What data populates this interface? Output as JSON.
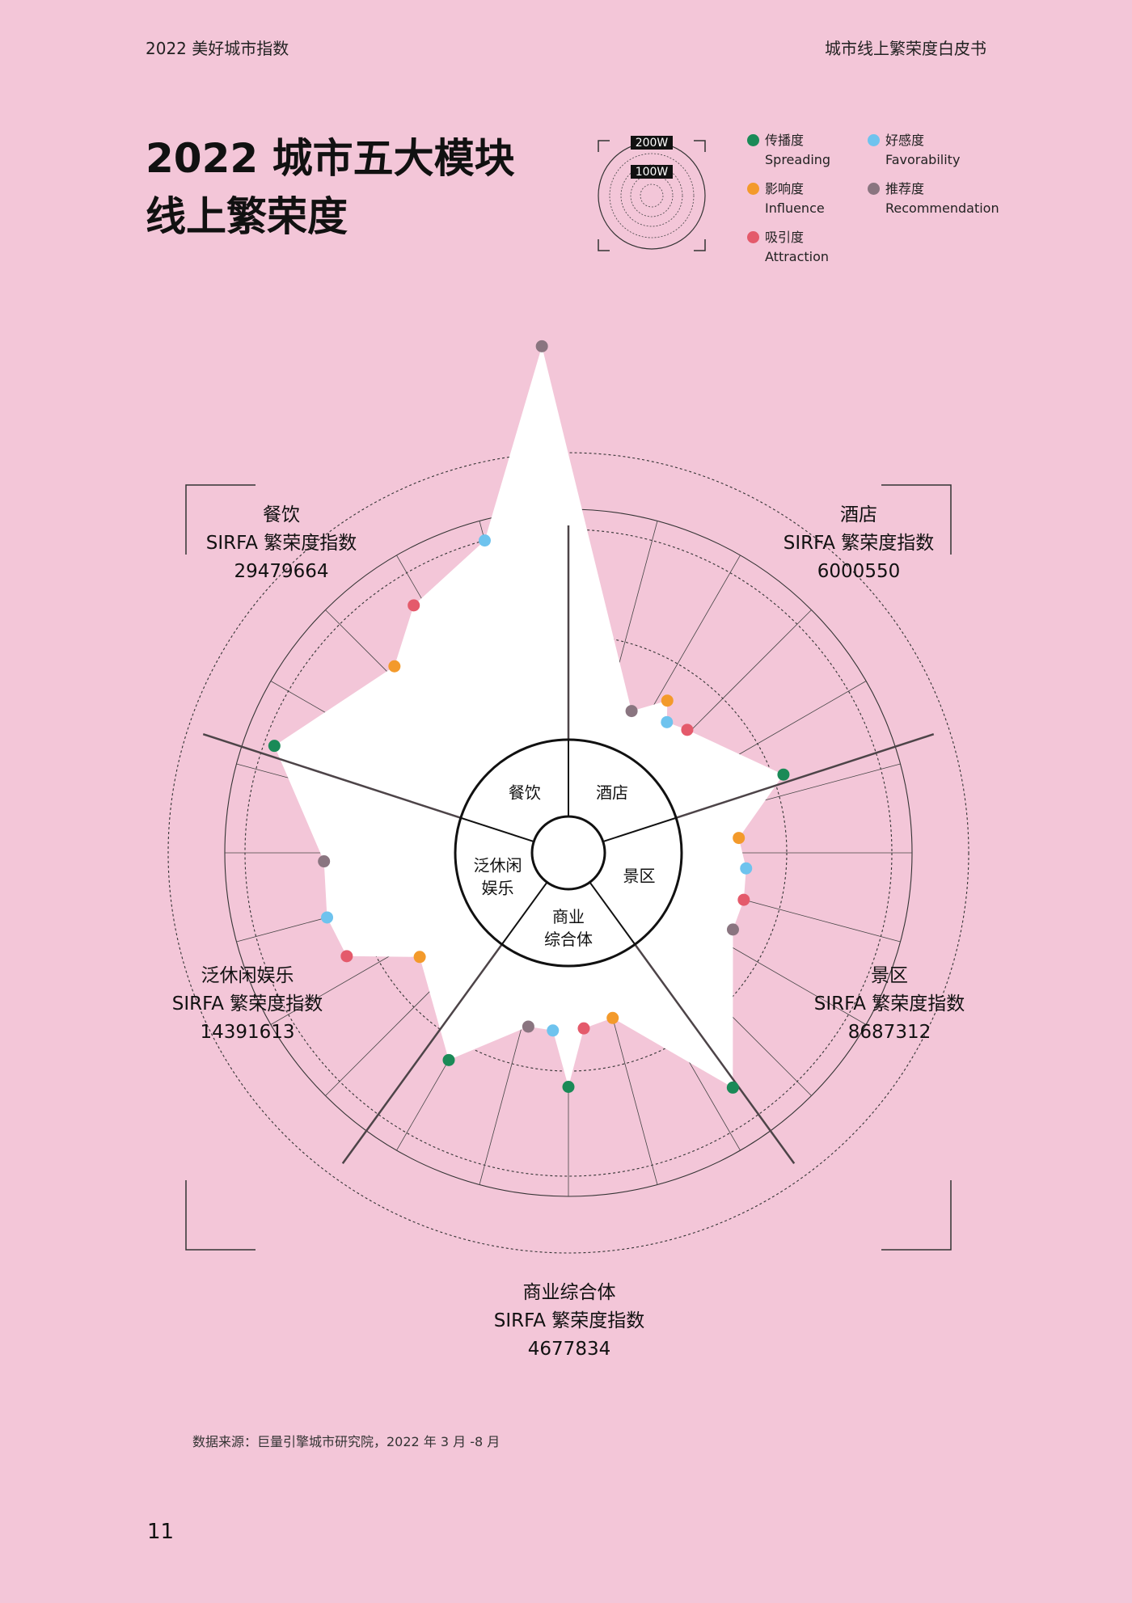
{
  "header": {
    "left": "2022 美好城市指数",
    "right": "城市线上繁荣度白皮书"
  },
  "title": {
    "line1": "2022 城市五大模块",
    "line2": "线上繁荣度"
  },
  "scale_legend": {
    "outer": "200W",
    "inner": "100W"
  },
  "metrics": [
    {
      "zh": "传播度",
      "en": "Spreading",
      "color": "#1a8a57"
    },
    {
      "zh": "影响度",
      "en": "Influence",
      "color": "#f39a2b"
    },
    {
      "zh": "吸引度",
      "en": "Attraction",
      "color": "#e45a6b"
    },
    {
      "zh": "好感度",
      "en": "Favorability",
      "color": "#6ec3ee"
    },
    {
      "zh": "推荐度",
      "en": "Recommendation",
      "color": "#8a7580"
    }
  ],
  "index_label": "SIRFA 繁荣度指数",
  "categories": [
    {
      "name": "餐饮",
      "index": "29479664"
    },
    {
      "name": "酒店",
      "index": "6000550"
    },
    {
      "name": "景区",
      "index": "8687312"
    },
    {
      "name": "商业综合体",
      "index": "4677834"
    },
    {
      "name": "泛休闲娱乐",
      "index": "14391613"
    }
  ],
  "hub_labels": {
    "food": "餐饮",
    "hotel": "酒店",
    "scenic": "景区",
    "mall_1": "商业",
    "mall_2": "综合体",
    "leisure_1": "泛休闲",
    "leisure_2": "娱乐"
  },
  "chart_data": {
    "type": "radar",
    "unit": "W",
    "scale_rings": [
      100,
      200
    ],
    "axes_order": [
      "传播度",
      "影响度",
      "吸引度",
      "好感度",
      "推荐度"
    ],
    "series": [
      {
        "name": "酒店",
        "angles_deg": [
          70,
          33,
          44,
          37,
          24
        ],
        "values": [
          110,
          65,
          55,
          48,
          40
        ]
      },
      {
        "name": "景区",
        "angles_deg": [
          145,
          85,
          105,
          95,
          115
        ],
        "values": [
          165,
          55,
          65,
          62,
          65
        ]
      },
      {
        "name": "商业综合体",
        "angles_deg": [
          180,
          165,
          175,
          185,
          193
        ],
        "values": [
          115,
          55,
          60,
          62,
          62
        ]
      },
      {
        "name": "泛休闲娱乐",
        "angles_deg": [
          210,
          235,
          245,
          255,
          268
        ],
        "values": [
          120,
          65,
          125,
          130,
          125
        ]
      },
      {
        "name": "餐饮",
        "angles_deg": [
          290,
          317,
          328,
          345,
          357
        ],
        "values": [
          190,
          135,
          170,
          200,
          375
        ]
      }
    ]
  }
}
